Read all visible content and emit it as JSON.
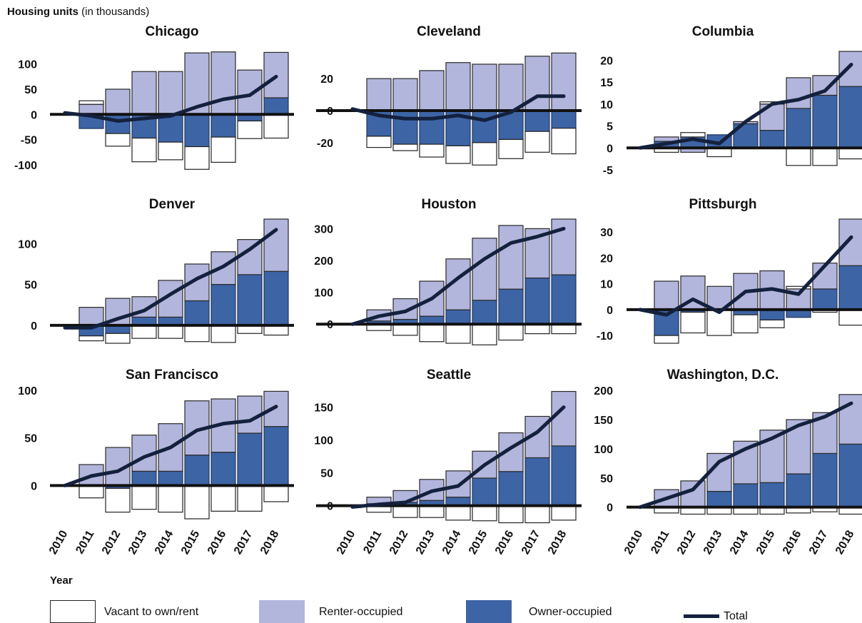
{
  "y_axis_title": {
    "bold": "Housing units",
    "rest": " (in thousands)"
  },
  "x_axis_title": "Year",
  "colors": {
    "vacant": "#ffffff",
    "renter": "#b2b5dc",
    "owner": "#3d64a5",
    "total": "#14213d",
    "axis": "#111111"
  },
  "legend": [
    {
      "key": "vacant",
      "label": "Vacant to own/rent",
      "kind": "box"
    },
    {
      "key": "renter",
      "label": "Renter-occupied",
      "kind": "box"
    },
    {
      "key": "owner",
      "label": "Owner-occupied",
      "kind": "box"
    },
    {
      "key": "total",
      "label": "Total",
      "kind": "line"
    }
  ],
  "chart_data": [
    {
      "type": "bar",
      "title": "Chicago",
      "x": [
        "2010",
        "2011",
        "2012",
        "2013",
        "2014",
        "2015",
        "2016",
        "2017",
        "2018"
      ],
      "ylim": [
        -110,
        125
      ],
      "yticks": [
        -100,
        -50,
        0,
        50,
        100
      ],
      "show_x_labels": false,
      "series": [
        {
          "name": "Owner-occupied",
          "values": [
            0,
            -28,
            -38,
            -47,
            -55,
            -64,
            -45,
            -13,
            33
          ]
        },
        {
          "name": "Renter-occupied",
          "values": [
            0,
            20,
            50,
            85,
            85,
            122,
            124,
            88,
            90
          ]
        },
        {
          "name": "Vacant to own/rent",
          "values": [
            0,
            7,
            -25,
            -47,
            -35,
            -45,
            -50,
            -35,
            -47
          ]
        },
        {
          "name": "Total",
          "values": [
            3,
            -3,
            -13,
            -8,
            -3,
            15,
            30,
            38,
            75
          ]
        }
      ]
    },
    {
      "type": "bar",
      "title": "Cleveland",
      "x": [
        "2010",
        "2011",
        "2012",
        "2013",
        "2014",
        "2015",
        "2016",
        "2017",
        "2018"
      ],
      "ylim": [
        -37,
        37
      ],
      "yticks": [
        -20,
        0,
        20
      ],
      "show_x_labels": false,
      "series": [
        {
          "name": "Owner-occupied",
          "values": [
            0,
            -16,
            -21,
            -21,
            -22,
            -20,
            -18,
            -13,
            -11
          ]
        },
        {
          "name": "Renter-occupied",
          "values": [
            0,
            20,
            20,
            25,
            30,
            29,
            29,
            34,
            36
          ]
        },
        {
          "name": "Vacant to own/rent",
          "values": [
            0,
            -7,
            -4,
            -8,
            -11,
            -14,
            -12,
            -13,
            -16
          ]
        },
        {
          "name": "Total",
          "values": [
            1,
            -3,
            -5,
            -5,
            -3,
            -6,
            -1,
            9,
            9
          ]
        }
      ]
    },
    {
      "type": "bar",
      "title": "Columbia",
      "x": [
        "2010",
        "2011",
        "2012",
        "2013",
        "2014",
        "2015",
        "2016",
        "2017",
        "2018"
      ],
      "ylim": [
        -5,
        22
      ],
      "yticks": [
        -5,
        0,
        5,
        10,
        15,
        20
      ],
      "show_x_labels": false,
      "series": [
        {
          "name": "Owner-occupied",
          "values": [
            0,
            1.5,
            2.5,
            3,
            5.5,
            4,
            9,
            12,
            14
          ]
        },
        {
          "name": "Renter-occupied",
          "values": [
            0,
            1,
            -1,
            0,
            0.5,
            6,
            7,
            4.5,
            8
          ]
        },
        {
          "name": "Vacant to own/rent",
          "values": [
            0,
            -1,
            1,
            -2,
            0,
            0.5,
            -4,
            -4,
            -2.5
          ]
        },
        {
          "name": "Total",
          "values": [
            0,
            1,
            2,
            1,
            6,
            10,
            11,
            13,
            19
          ]
        }
      ]
    },
    {
      "type": "bar",
      "title": "Denver",
      "x": [
        "2010",
        "2011",
        "2012",
        "2013",
        "2014",
        "2015",
        "2016",
        "2017",
        "2018"
      ],
      "ylim": [
        -22,
        130
      ],
      "yticks": [
        0,
        50,
        100
      ],
      "show_x_labels": false,
      "series": [
        {
          "name": "Owner-occupied",
          "values": [
            0,
            -13,
            -10,
            10,
            10,
            30,
            50,
            62,
            66
          ]
        },
        {
          "name": "Renter-occupied",
          "values": [
            0,
            22,
            33,
            25,
            45,
            45,
            40,
            43,
            64
          ]
        },
        {
          "name": "Vacant to own/rent",
          "values": [
            0,
            -6,
            -12,
            -16,
            -16,
            -20,
            -21,
            -10,
            -12
          ]
        },
        {
          "name": "Total",
          "values": [
            -3,
            -3,
            8,
            18,
            38,
            57,
            72,
            93,
            117
          ]
        }
      ]
    },
    {
      "type": "bar",
      "title": "Houston",
      "x": [
        "2010",
        "2011",
        "2012",
        "2013",
        "2014",
        "2015",
        "2016",
        "2017",
        "2018"
      ],
      "ylim": [
        -60,
        330
      ],
      "yticks": [
        0,
        100,
        200,
        300
      ],
      "show_x_labels": false,
      "series": [
        {
          "name": "Owner-occupied",
          "values": [
            0,
            10,
            15,
            25,
            45,
            75,
            110,
            145,
            155
          ]
        },
        {
          "name": "Renter-occupied",
          "values": [
            0,
            35,
            65,
            110,
            160,
            195,
            200,
            155,
            175
          ]
        },
        {
          "name": "Vacant to own/rent",
          "values": [
            0,
            -20,
            -35,
            -55,
            -60,
            -65,
            -50,
            -30,
            -30
          ]
        },
        {
          "name": "Total",
          "values": [
            0,
            25,
            40,
            80,
            145,
            205,
            255,
            275,
            300
          ]
        }
      ]
    },
    {
      "type": "bar",
      "title": "Pittsburgh",
      "x": [
        "2010",
        "2011",
        "2012",
        "2013",
        "2014",
        "2015",
        "2016",
        "2017",
        "2018"
      ],
      "ylim": [
        -13,
        35
      ],
      "yticks": [
        -10,
        0,
        10,
        20,
        30
      ],
      "show_x_labels": false,
      "series": [
        {
          "name": "Owner-occupied",
          "values": [
            0,
            -10,
            -1,
            0,
            -2,
            -4,
            -3,
            8,
            17
          ]
        },
        {
          "name": "Renter-occupied",
          "values": [
            0,
            11,
            13,
            9,
            14,
            15,
            8,
            10,
            18
          ]
        },
        {
          "name": "Vacant to own/rent",
          "values": [
            0,
            -3,
            -8,
            -10,
            -7,
            -3,
            1,
            -1,
            -6
          ]
        },
        {
          "name": "Total",
          "values": [
            0,
            -2,
            4,
            -1,
            7,
            8,
            6,
            17,
            28
          ]
        }
      ]
    },
    {
      "type": "bar",
      "title": "San Francisco",
      "x": [
        "2010",
        "2011",
        "2012",
        "2013",
        "2014",
        "2015",
        "2016",
        "2017",
        "2018"
      ],
      "ylim": [
        -35,
        103
      ],
      "yticks": [
        0,
        50,
        100
      ],
      "show_x_labels": true,
      "series": [
        {
          "name": "Owner-occupied",
          "values": [
            0,
            0,
            -3,
            15,
            15,
            32,
            35,
            55,
            62
          ]
        },
        {
          "name": "Renter-occupied",
          "values": [
            0,
            22,
            40,
            38,
            50,
            57,
            56,
            39,
            37
          ]
        },
        {
          "name": "Vacant to own/rent",
          "values": [
            0,
            -13,
            -25,
            -25,
            -28,
            -35,
            -27,
            -27,
            -17
          ]
        },
        {
          "name": "Total",
          "values": [
            0,
            10,
            15,
            30,
            40,
            58,
            65,
            68,
            83
          ]
        }
      ]
    },
    {
      "type": "bar",
      "title": "Seattle",
      "x": [
        "2010",
        "2011",
        "2012",
        "2013",
        "2014",
        "2015",
        "2016",
        "2017",
        "2018"
      ],
      "ylim": [
        -20,
        180
      ],
      "yticks": [
        0,
        50,
        100,
        150
      ],
      "show_x_labels": true,
      "series": [
        {
          "name": "Owner-occupied",
          "values": [
            0,
            3,
            5,
            8,
            13,
            42,
            52,
            73,
            91
          ]
        },
        {
          "name": "Renter-occupied",
          "values": [
            0,
            10,
            18,
            32,
            40,
            41,
            59,
            63,
            83
          ]
        },
        {
          "name": "Vacant to own/rent",
          "values": [
            0,
            -10,
            -18,
            -18,
            -22,
            -23,
            -26,
            -26,
            -22
          ]
        },
        {
          "name": "Total",
          "values": [
            -2,
            2,
            5,
            22,
            30,
            62,
            88,
            112,
            150
          ]
        }
      ]
    },
    {
      "type": "bar",
      "title": "Washington, D.C.",
      "x": [
        "2010",
        "2011",
        "2012",
        "2013",
        "2014",
        "2015",
        "2016",
        "2017",
        "2018"
      ],
      "ylim": [
        -20,
        205
      ],
      "yticks": [
        0,
        50,
        100,
        150,
        200
      ],
      "show_x_labels": true,
      "series": [
        {
          "name": "Owner-occupied",
          "values": [
            0,
            0,
            0,
            27,
            40,
            42,
            57,
            92,
            108
          ]
        },
        {
          "name": "Renter-occupied",
          "values": [
            0,
            30,
            45,
            65,
            73,
            90,
            93,
            70,
            85
          ]
        },
        {
          "name": "Vacant to own/rent",
          "values": [
            0,
            -10,
            -12,
            -12,
            -12,
            -12,
            -10,
            -8,
            -12
          ]
        },
        {
          "name": "Total",
          "values": [
            0,
            15,
            30,
            78,
            100,
            118,
            140,
            155,
            178
          ]
        }
      ]
    }
  ]
}
